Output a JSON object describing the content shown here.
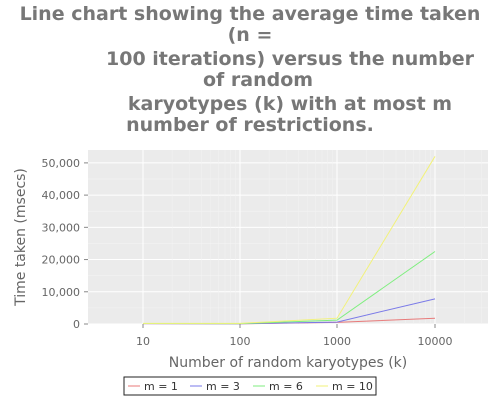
{
  "chart_data": {
    "type": "line",
    "title_lines": [
      "Line chart showing the average time taken (n =",
      "100 iterations) versus the number of random",
      "karyotypes (k) with at most m",
      "number of restrictions."
    ],
    "xlabel": "Number of random karyotypes (k)",
    "ylabel": "Time taken (msecs)",
    "x": [
      10,
      100,
      1000,
      10000
    ],
    "x_tick_labels": [
      "10",
      "100",
      "1000",
      "10000"
    ],
    "x_scale": "log",
    "y_ticks": [
      0,
      10000,
      20000,
      30000,
      40000,
      50000
    ],
    "y_tick_labels": [
      "0",
      "10,000",
      "20,000",
      "30,000",
      "40,000",
      "50,000"
    ],
    "ylim": [
      0,
      54000
    ],
    "grid": true,
    "legend_position": "bottom",
    "series": [
      {
        "name": "m = 1",
        "color": "#e87a7a",
        "values": [
          100,
          60,
          500,
          1800
        ]
      },
      {
        "name": "m = 3",
        "color": "#7a7ae8",
        "values": [
          120,
          80,
          600,
          7800
        ]
      },
      {
        "name": "m = 6",
        "color": "#7fee7f",
        "values": [
          150,
          100,
          1200,
          22500
        ]
      },
      {
        "name": "m = 10",
        "color": "#f2f27a",
        "values": [
          200,
          200,
          1800,
          52000
        ]
      }
    ]
  }
}
